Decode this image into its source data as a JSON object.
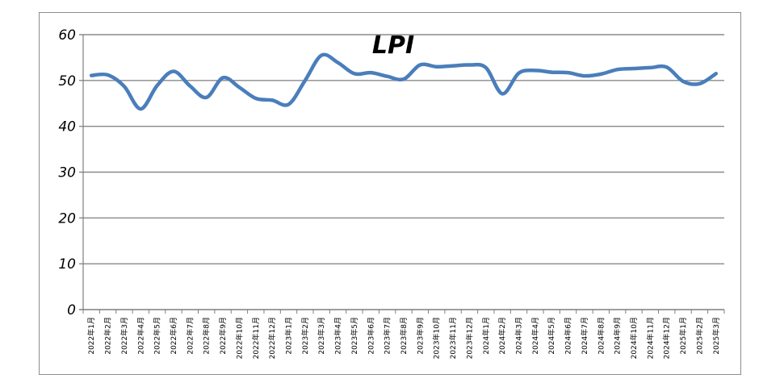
{
  "chart_data": {
    "type": "line",
    "title": "LPI",
    "xlabel": "",
    "ylabel": "",
    "ylim": [
      0,
      60
    ],
    "yticks": [
      0,
      10,
      20,
      30,
      40,
      50,
      60
    ],
    "grid": true,
    "legend": "none",
    "line_color": "#4a7ebb",
    "categories": [
      "2022年1月",
      "2022年2月",
      "2022年3月",
      "2022年4月",
      "2022年5月",
      "2022年6月",
      "2022年7月",
      "2022年8月",
      "2022年9月",
      "2022年10月",
      "2022年11月",
      "2022年12月",
      "2023年1月",
      "2023年2月",
      "2023年3月",
      "2023年4月",
      "2023年5月",
      "2023年6月",
      "2023年7月",
      "2023年8月",
      "2023年9月",
      "2023年10月",
      "2023年11月",
      "2023年12月",
      "2024年1月",
      "2024年2月",
      "2024年3月",
      "2024年4月",
      "2024年5月",
      "2024年6月",
      "2024年7月",
      "2024年8月",
      "2024年9月",
      "2024年10月",
      "2024年11月",
      "2024年12月",
      "2025年1月",
      "2025年2月",
      "2025年3月"
    ],
    "series": [
      {
        "values": [
          51.1,
          51.2,
          48.7,
          43.8,
          48.9,
          52.0,
          48.8,
          46.3,
          50.6,
          48.5,
          46.1,
          45.7,
          44.8,
          50.0,
          55.5,
          53.9,
          51.5,
          51.7,
          50.9,
          50.3,
          53.4,
          53.0,
          53.2,
          53.4,
          52.8,
          47.1,
          51.6,
          52.2,
          51.8,
          51.7,
          51.0,
          51.4,
          52.4,
          52.6,
          52.8,
          52.9,
          49.8,
          49.3,
          51.5
        ]
      }
    ]
  }
}
